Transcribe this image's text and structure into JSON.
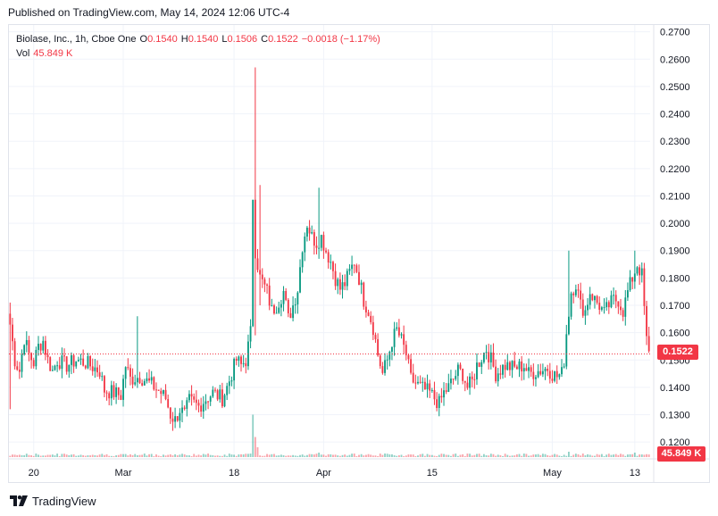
{
  "header": {
    "published_text": "Published on TradingView.com, May 14, 2024 12:06 UTC-4"
  },
  "legend": {
    "symbol": "Biolase, Inc., 1h, Cboe One",
    "o_label": "O",
    "o_value": "0.1540",
    "h_label": "H",
    "h_value": "0.1540",
    "l_label": "L",
    "l_value": "0.1506",
    "c_label": "C",
    "c_value": "0.1522",
    "change": "−0.0018 (−1.17%)",
    "vol_label": "Vol",
    "vol_value": "45.849 K"
  },
  "footer": {
    "brand": "TradingView",
    "logo_icon": "tradingview-logo-icon"
  },
  "colors": {
    "up": "#089981",
    "down": "#f23645",
    "grid": "#f0f3fa",
    "axis_text": "#131722"
  },
  "chart_data": {
    "type": "candlestick",
    "symbol": "Biolase, Inc.",
    "interval": "1h",
    "exchange": "Cboe One",
    "y_range": [
      0.1145,
      0.2725
    ],
    "y_ticks": [
      "0.1200",
      "0.1300",
      "0.1400",
      "0.1500",
      "0.1600",
      "0.1700",
      "0.1800",
      "0.1900",
      "0.2000",
      "0.2100",
      "0.2200",
      "0.2300",
      "0.2400",
      "0.2500",
      "0.2600",
      "0.2700"
    ],
    "x_ticks": [
      {
        "label": "20",
        "index": 10
      },
      {
        "label": "Mar",
        "index": 48
      },
      {
        "label": "18",
        "index": 95
      },
      {
        "label": "Apr",
        "index": 133
      },
      {
        "label": "15",
        "index": 179
      },
      {
        "label": "May",
        "index": 230
      },
      {
        "label": "13",
        "index": 265
      }
    ],
    "last_price": 0.1522,
    "last_price_label": "0.1522",
    "last_volume_label": "45.849 K",
    "grid": true,
    "anchors": [
      [
        0,
        0.163
      ],
      [
        2,
        0.15
      ],
      [
        4,
        0.146
      ],
      [
        6,
        0.158
      ],
      [
        8,
        0.152
      ],
      [
        10,
        0.149
      ],
      [
        12,
        0.155
      ],
      [
        14,
        0.157
      ],
      [
        16,
        0.15
      ],
      [
        18,
        0.146
      ],
      [
        20,
        0.15
      ],
      [
        24,
        0.148
      ],
      [
        28,
        0.15
      ],
      [
        32,
        0.149
      ],
      [
        36,
        0.147
      ],
      [
        38,
        0.146
      ],
      [
        40,
        0.139
      ],
      [
        44,
        0.138
      ],
      [
        47,
        0.137
      ],
      [
        49,
        0.148
      ],
      [
        51,
        0.143
      ],
      [
        55,
        0.144
      ],
      [
        60,
        0.141
      ],
      [
        64,
        0.138
      ],
      [
        66,
        0.136
      ],
      [
        68,
        0.13
      ],
      [
        70,
        0.128
      ],
      [
        72,
        0.132
      ],
      [
        74,
        0.13
      ],
      [
        76,
        0.135
      ],
      [
        80,
        0.133
      ],
      [
        82,
        0.135
      ],
      [
        86,
        0.138
      ],
      [
        90,
        0.136
      ],
      [
        92,
        0.14
      ],
      [
        96,
        0.15
      ],
      [
        98,
        0.148
      ],
      [
        100,
        0.15
      ],
      [
        102,
        0.16
      ],
      [
        103,
        0.21
      ],
      [
        104,
        0.19
      ],
      [
        106,
        0.18
      ],
      [
        109,
        0.175
      ],
      [
        111,
        0.168
      ],
      [
        113,
        0.17
      ],
      [
        116,
        0.175
      ],
      [
        118,
        0.165
      ],
      [
        120,
        0.17
      ],
      [
        122,
        0.176
      ],
      [
        124,
        0.192
      ],
      [
        126,
        0.2
      ],
      [
        128,
        0.195
      ],
      [
        130,
        0.193
      ],
      [
        132,
        0.195
      ],
      [
        134,
        0.19
      ],
      [
        136,
        0.186
      ],
      [
        138,
        0.18
      ],
      [
        140,
        0.176
      ],
      [
        142,
        0.178
      ],
      [
        144,
        0.182
      ],
      [
        146,
        0.186
      ],
      [
        148,
        0.18
      ],
      [
        150,
        0.172
      ],
      [
        152,
        0.168
      ],
      [
        154,
        0.162
      ],
      [
        156,
        0.152
      ],
      [
        158,
        0.145
      ],
      [
        160,
        0.15
      ],
      [
        162,
        0.157
      ],
      [
        164,
        0.161
      ],
      [
        166,
        0.157
      ],
      [
        168,
        0.152
      ],
      [
        170,
        0.143
      ],
      [
        174,
        0.14
      ],
      [
        178,
        0.138
      ],
      [
        180,
        0.136
      ],
      [
        182,
        0.134
      ],
      [
        184,
        0.138
      ],
      [
        186,
        0.14
      ],
      [
        190,
        0.146
      ],
      [
        192,
        0.145
      ],
      [
        194,
        0.14
      ],
      [
        196,
        0.142
      ],
      [
        198,
        0.148
      ],
      [
        202,
        0.154
      ],
      [
        204,
        0.15
      ],
      [
        206,
        0.145
      ],
      [
        210,
        0.148
      ],
      [
        214,
        0.147
      ],
      [
        218,
        0.148
      ],
      [
        220,
        0.145
      ],
      [
        224,
        0.146
      ],
      [
        228,
        0.147
      ],
      [
        230,
        0.145
      ],
      [
        232,
        0.144
      ],
      [
        234,
        0.145
      ],
      [
        235,
        0.15
      ],
      [
        236,
        0.16
      ],
      [
        238,
        0.175
      ],
      [
        240,
        0.178
      ],
      [
        242,
        0.17
      ],
      [
        244,
        0.168
      ],
      [
        246,
        0.175
      ],
      [
        248,
        0.172
      ],
      [
        250,
        0.17
      ],
      [
        252,
        0.167
      ],
      [
        254,
        0.17
      ],
      [
        256,
        0.172
      ],
      [
        258,
        0.172
      ],
      [
        260,
        0.168
      ],
      [
        262,
        0.175
      ],
      [
        264,
        0.18
      ],
      [
        266,
        0.185
      ],
      [
        268,
        0.181
      ],
      [
        270,
        0.157
      ],
      [
        271,
        0.152
      ]
    ],
    "spikes": [
      [
        0,
        0.171,
        0.132
      ],
      [
        54,
        0.166,
        0.147
      ],
      [
        104,
        0.257,
        0.159
      ],
      [
        106,
        0.214,
        0.17
      ],
      [
        131,
        0.213,
        0.187
      ],
      [
        237,
        0.19,
        0.164
      ],
      [
        265,
        0.19,
        0.176
      ]
    ],
    "volume_spikes": [
      [
        103,
        0.95
      ],
      [
        104,
        0.45
      ],
      [
        105,
        0.22
      ],
      [
        131,
        0.1
      ],
      [
        237,
        0.12
      ],
      [
        265,
        0.1
      ]
    ],
    "candle_count": 272
  }
}
